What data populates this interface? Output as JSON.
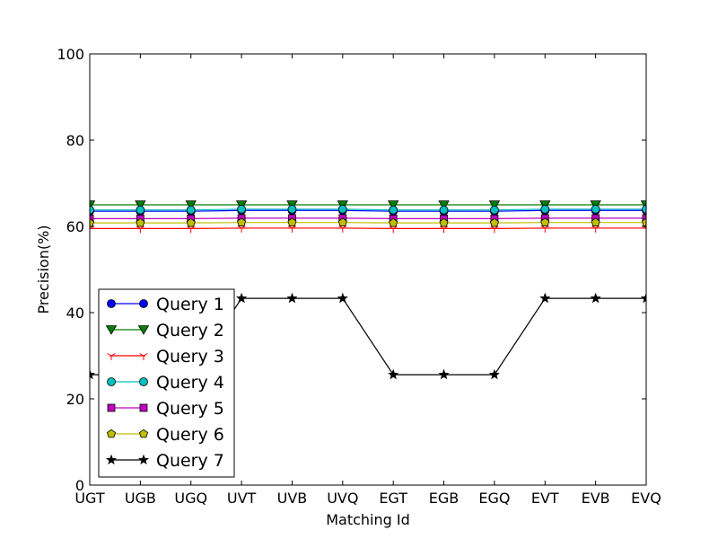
{
  "chart_data": {
    "type": "line",
    "title": "",
    "xlabel": "Matching Id",
    "ylabel": "Precision(%)",
    "ylim": [
      0,
      100
    ],
    "yticks": [
      "0",
      "20",
      "40",
      "60",
      "80",
      "100"
    ],
    "categories": [
      "UGT",
      "UGB",
      "UGQ",
      "UVT",
      "UVB",
      "UVQ",
      "EGT",
      "EGB",
      "EGQ",
      "EVT",
      "EVB",
      "EVQ"
    ],
    "grid": false,
    "legend_position": "lower-left",
    "series": [
      {
        "name": "Query 1",
        "color": "#0000ff",
        "marker": "circle",
        "values": [
          63.5,
          63.5,
          63.5,
          63.7,
          63.7,
          63.7,
          63.5,
          63.5,
          63.5,
          63.7,
          63.7,
          63.7
        ]
      },
      {
        "name": "Query 2",
        "color": "#007f00",
        "marker": "triangle-down",
        "values": [
          65.0,
          65.0,
          65.0,
          65.0,
          65.0,
          65.0,
          65.0,
          65.0,
          65.0,
          65.0,
          65.0,
          65.0
        ]
      },
      {
        "name": "Query 3",
        "color": "#ff0000",
        "marker": "tri-down",
        "values": [
          59.5,
          59.5,
          59.5,
          59.6,
          59.6,
          59.6,
          59.5,
          59.5,
          59.5,
          59.6,
          59.6,
          59.6
        ]
      },
      {
        "name": "Query 4",
        "color": "#00bfbf",
        "marker": "circle",
        "values": [
          63.8,
          63.8,
          63.8,
          64.0,
          64.0,
          64.0,
          63.8,
          63.8,
          63.8,
          64.0,
          64.0,
          64.0
        ]
      },
      {
        "name": "Query 5",
        "color": "#bf00bf",
        "marker": "square",
        "values": [
          61.8,
          61.8,
          61.8,
          61.9,
          61.9,
          61.9,
          61.8,
          61.8,
          61.8,
          61.9,
          61.9,
          61.9
        ]
      },
      {
        "name": "Query 6",
        "color": "#bfbf00",
        "marker": "pentagon",
        "values": [
          60.8,
          60.8,
          60.8,
          60.9,
          60.9,
          60.9,
          60.8,
          60.8,
          60.8,
          60.9,
          60.9,
          60.9
        ]
      },
      {
        "name": "Query 7",
        "color": "#000000",
        "marker": "star",
        "values": [
          25.6,
          25.6,
          25.6,
          43.3,
          43.3,
          43.3,
          25.6,
          25.6,
          25.6,
          43.3,
          43.3,
          43.3
        ]
      }
    ]
  }
}
